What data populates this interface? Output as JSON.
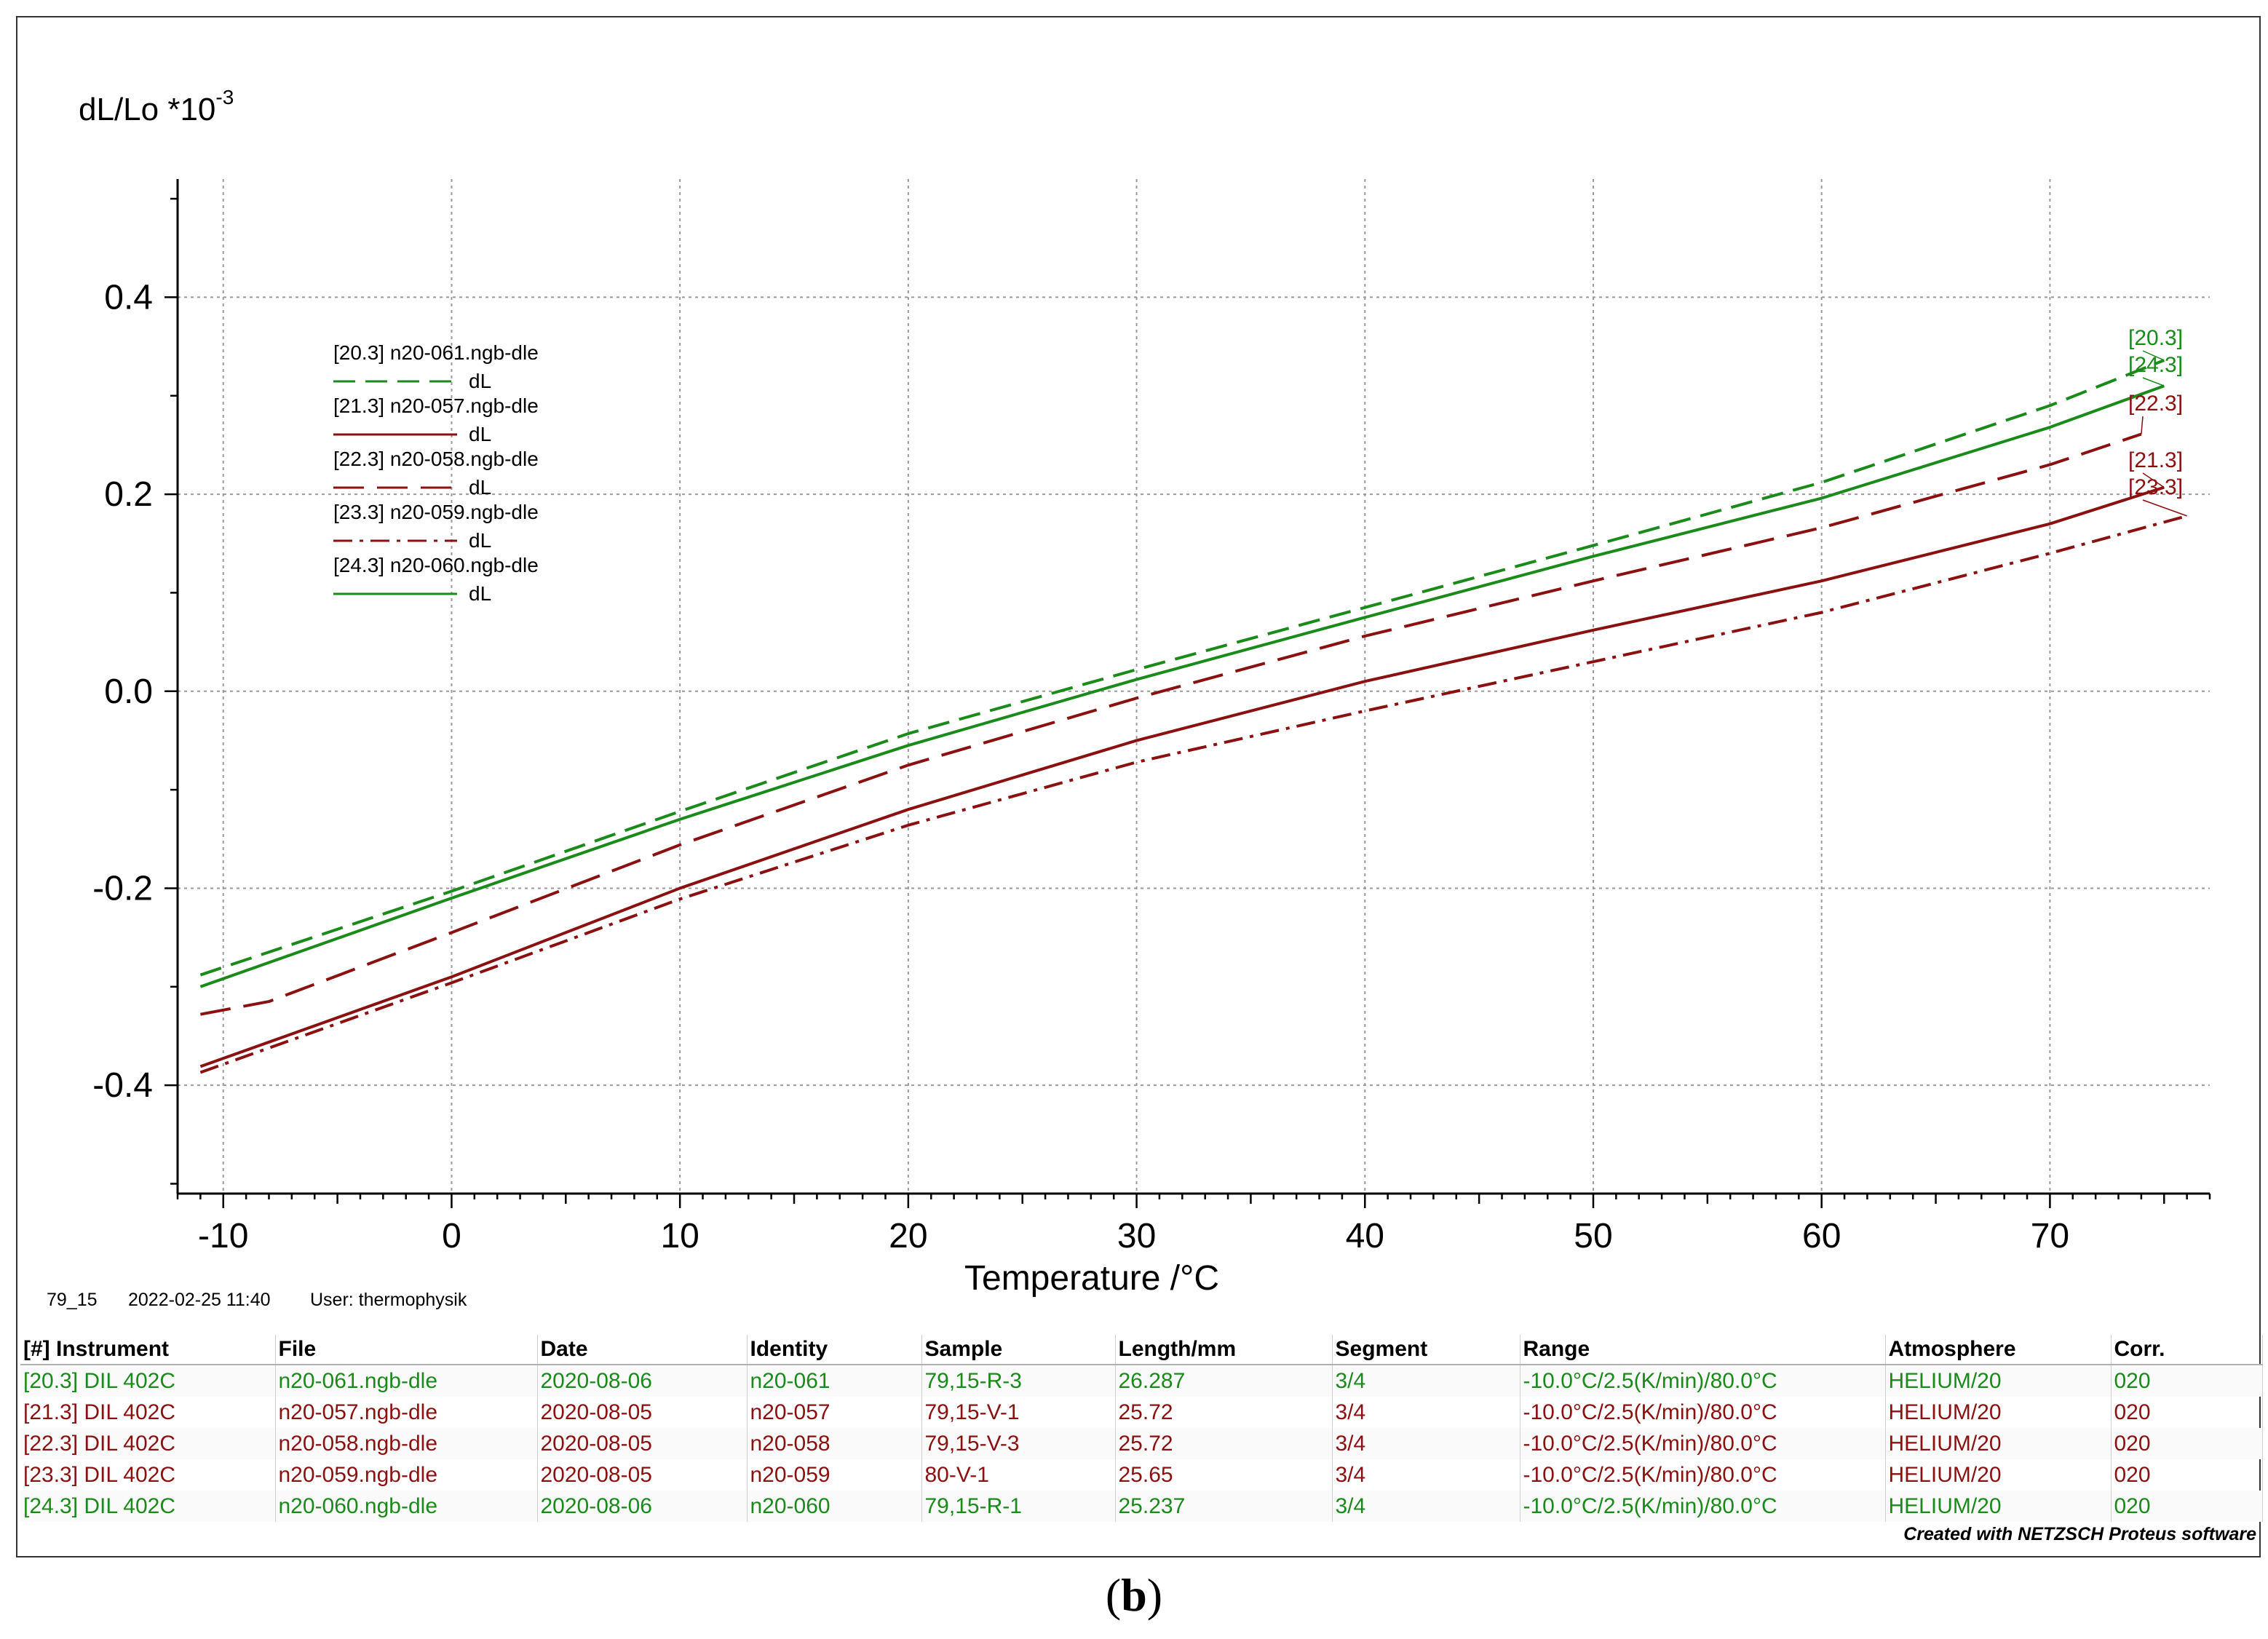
{
  "colors": {
    "green": "#1a8a1a",
    "darkred": "#8b1010",
    "grid": "#9a9a9a",
    "axis": "#000000"
  },
  "chart_data": {
    "type": "line",
    "ylabel": "dL/Lo *10",
    "ylabel_exp": "-3",
    "xlabel": "Temperature /°C",
    "xlim": [
      -12,
      77
    ],
    "ylim": [
      -0.51,
      0.52
    ],
    "x_ticks": [
      -10,
      0,
      10,
      20,
      30,
      40,
      50,
      60,
      70
    ],
    "x_tick_labels": [
      "-10",
      "0",
      "10",
      "20",
      "30",
      "40",
      "50",
      "60",
      "70"
    ],
    "y_ticks": [
      0.4,
      0.2,
      0.0,
      -0.2,
      -0.4
    ],
    "y_tick_labels": [
      "0.4",
      "0.2",
      "0.0",
      "-0.2",
      "-0.4"
    ],
    "grid": true,
    "series": [
      {
        "id": "[20.3]",
        "name": "[20.3] n20-061.ngb-dle",
        "legend_sub": "dL",
        "end_label": "[20.3]",
        "color": "green",
        "dash": "dashed",
        "x": [
          -11,
          0,
          10,
          20,
          30,
          40,
          50,
          60,
          70,
          75
        ],
        "y": [
          -0.288,
          -0.203,
          -0.122,
          -0.043,
          0.022,
          0.085,
          0.148,
          0.212,
          0.29,
          0.336
        ]
      },
      {
        "id": "[21.3]",
        "name": "[21.3] n20-057.ngb-dle",
        "legend_sub": "dL",
        "end_label": "[21.3]",
        "color": "darkred",
        "dash": "solid",
        "x": [
          -11,
          0,
          10,
          20,
          30,
          40,
          50,
          60,
          70,
          75
        ],
        "y": [
          -0.381,
          -0.29,
          -0.2,
          -0.12,
          -0.05,
          0.01,
          0.062,
          0.112,
          0.17,
          0.207
        ]
      },
      {
        "id": "[22.3]",
        "name": "[22.3] n20-058.ngb-dle",
        "legend_sub": "dL",
        "end_label": "[22.3]",
        "color": "darkred",
        "dash": "longdash",
        "x": [
          -11,
          -8,
          0,
          10,
          20,
          30,
          40,
          50,
          60,
          70,
          74
        ],
        "y": [
          -0.328,
          -0.315,
          -0.245,
          -0.156,
          -0.075,
          -0.007,
          0.056,
          0.112,
          0.166,
          0.23,
          0.261
        ]
      },
      {
        "id": "[23.3]",
        "name": "[23.3] n20-059.ngb-dle",
        "legend_sub": "dL",
        "end_label": "[23.3]",
        "color": "darkred",
        "dash": "dashdot",
        "x": [
          -11,
          0,
          10,
          20,
          30,
          40,
          50,
          60,
          70,
          76
        ],
        "y": [
          -0.387,
          -0.296,
          -0.211,
          -0.136,
          -0.072,
          -0.02,
          0.03,
          0.08,
          0.14,
          0.178
        ]
      },
      {
        "id": "[24.3]",
        "name": "[24.3] n20-060.ngb-dle",
        "legend_sub": "dL",
        "end_label": "[24.3]",
        "color": "green",
        "dash": "solid",
        "x": [
          -11,
          0,
          10,
          20,
          30,
          40,
          50,
          60,
          70,
          75
        ],
        "y": [
          -0.3,
          -0.21,
          -0.13,
          -0.055,
          0.012,
          0.075,
          0.137,
          0.196,
          0.268,
          0.31
        ]
      }
    ]
  },
  "footer": {
    "id": "79_15",
    "datetime": "2022-02-25 11:40",
    "user": "User: thermophysik"
  },
  "table": {
    "headers": [
      "[#] Instrument",
      "File",
      "Date",
      "Identity",
      "Sample",
      "Length/mm",
      "Segment",
      "Range",
      "Atmosphere",
      "Corr."
    ],
    "rows": [
      {
        "color": "green",
        "cells": [
          "[20.3] DIL 402C",
          "n20-061.ngb-dle",
          "2020-08-06",
          "n20-061",
          "79,15-R-3",
          "26.287",
          "3/4",
          "-10.0°C/2.5(K/min)/80.0°C",
          "HELIUM/20",
          "020"
        ]
      },
      {
        "color": "darkred",
        "cells": [
          "[21.3] DIL 402C",
          "n20-057.ngb-dle",
          "2020-08-05",
          "n20-057",
          "79,15-V-1",
          "25.72",
          "3/4",
          "-10.0°C/2.5(K/min)/80.0°C",
          "HELIUM/20",
          "020"
        ]
      },
      {
        "color": "darkred",
        "cells": [
          "[22.3] DIL 402C",
          "n20-058.ngb-dle",
          "2020-08-05",
          "n20-058",
          "79,15-V-3",
          "25.72",
          "3/4",
          "-10.0°C/2.5(K/min)/80.0°C",
          "HELIUM/20",
          "020"
        ]
      },
      {
        "color": "darkred",
        "cells": [
          "[23.3] DIL 402C",
          "n20-059.ngb-dle",
          "2020-08-05",
          "n20-059",
          "80-V-1",
          "25.65",
          "3/4",
          "-10.0°C/2.5(K/min)/80.0°C",
          "HELIUM/20",
          "020"
        ]
      },
      {
        "color": "green",
        "cells": [
          "[24.3] DIL 402C",
          "n20-060.ngb-dle",
          "2020-08-06",
          "n20-060",
          "79,15-R-1",
          "25.237",
          "3/4",
          "-10.0°C/2.5(K/min)/80.0°C",
          "HELIUM/20",
          "020"
        ]
      }
    ]
  },
  "credit": "Created with NETZSCH Proteus software",
  "caption": {
    "open": "(",
    "letter": "b",
    "close": ")"
  }
}
